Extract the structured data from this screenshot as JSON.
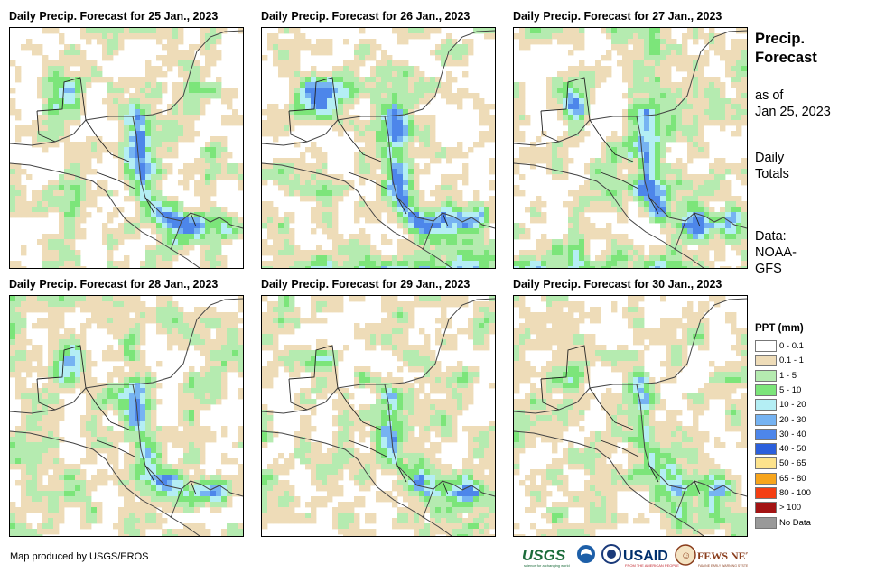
{
  "panels": [
    {
      "title": "Daily Precip. Forecast for 25 Jan., 2023",
      "day": 25
    },
    {
      "title": "Daily Precip. Forecast for 26 Jan., 2023",
      "day": 26
    },
    {
      "title": "Daily Precip. Forecast for 27 Jan., 2023",
      "day": 27
    },
    {
      "title": "Daily Precip. Forecast for 28 Jan., 2023",
      "day": 28
    },
    {
      "title": "Daily Precip. Forecast for 29 Jan., 2023",
      "day": 29
    },
    {
      "title": "Daily Precip. Forecast for 30 Jan., 2023",
      "day": 30
    }
  ],
  "sidebar": {
    "title_line1": "Precip.",
    "title_line2": "Forecast",
    "asof_line1": "as of",
    "asof_line2": "Jan 25, 2023",
    "totals_line1": "Daily",
    "totals_line2": "Totals",
    "source_line1": "Data:",
    "source_line2": "NOAA-",
    "source_line3": "GFS"
  },
  "legend": {
    "title": "PPT (mm)",
    "items": [
      {
        "label": "0 - 0.1",
        "color": "#ffffff"
      },
      {
        "label": "0.1 - 1",
        "color": "#eedcb8"
      },
      {
        "label": "1 - 5",
        "color": "#b5ebb0"
      },
      {
        "label": "5 - 10",
        "color": "#7ce57a"
      },
      {
        "label": "10 - 20",
        "color": "#b4eef4"
      },
      {
        "label": "20 - 30",
        "color": "#76b3f2"
      },
      {
        "label": "30 - 40",
        "color": "#4d86ea"
      },
      {
        "label": "40 - 50",
        "color": "#2b5fdc"
      },
      {
        "label": "50 - 65",
        "color": "#fde38c"
      },
      {
        "label": "65 - 80",
        "color": "#f7a51c"
      },
      {
        "label": "80 - 100",
        "color": "#f43e12"
      },
      {
        "label": "> 100",
        "color": "#a31313"
      },
      {
        "label": "No Data",
        "color": "#999999"
      }
    ]
  },
  "footer": {
    "credit": "Map produced by USGS/EROS",
    "logo_usgs": "USGS",
    "logo_usaid": "USAID",
    "logo_fewsnet": "FEWS NET"
  },
  "icons": [
    "usgs-logo",
    "noaa-logo",
    "usaid-logo",
    "fewsnet-logo"
  ]
}
